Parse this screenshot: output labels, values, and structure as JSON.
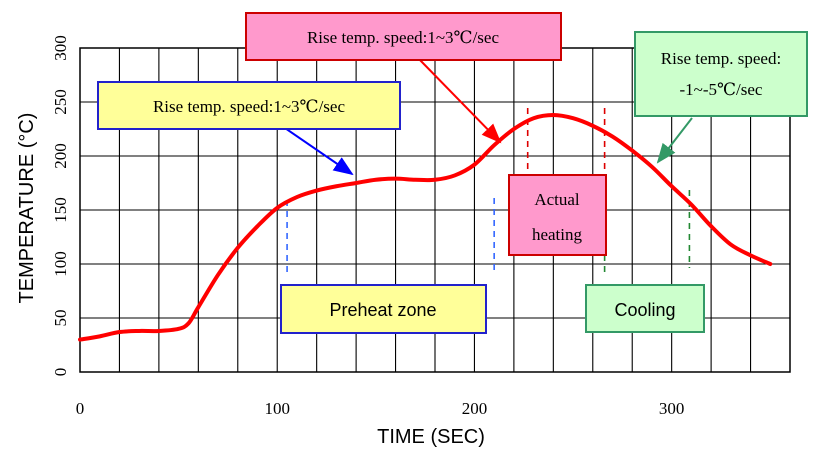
{
  "chart_data": {
    "type": "line",
    "xlabel": "TIME (SEC)",
    "ylabel": "TEMPERATURE (°C)",
    "xlim": [
      0,
      360
    ],
    "ylim": [
      0,
      300
    ],
    "x_ticks": [
      0,
      100,
      200,
      300
    ],
    "y_ticks": [
      0,
      50,
      100,
      150,
      200,
      250,
      300
    ],
    "grid": true,
    "series": [
      {
        "color": "#ff0000",
        "x": [
          0,
          10,
          20,
          30,
          40,
          50,
          55,
          60,
          70,
          80,
          90,
          100,
          110,
          120,
          130,
          140,
          150,
          160,
          170,
          180,
          190,
          200,
          210,
          220,
          230,
          240,
          250,
          260,
          270,
          280,
          290,
          300,
          310,
          320,
          330,
          340,
          350
        ],
        "y": [
          30,
          33,
          37,
          38,
          38,
          40,
          45,
          60,
          90,
          115,
          135,
          152,
          162,
          168,
          172,
          175,
          178,
          179,
          178,
          178,
          182,
          192,
          210,
          225,
          235,
          238,
          235,
          228,
          218,
          205,
          190,
          172,
          155,
          135,
          118,
          108,
          100
        ]
      }
    ],
    "markers": [
      {
        "x": 105,
        "color": "#3366ff"
      },
      {
        "x": 210,
        "color": "#3366ff"
      },
      {
        "x": 227,
        "color": "#dd0000"
      },
      {
        "x": 266,
        "color": "#dd0000"
      },
      {
        "x": 266,
        "color": "#228833"
      },
      {
        "x": 309,
        "color": "#228833"
      }
    ]
  },
  "annotations": {
    "rise1": {
      "text": "Rise temp. speed:1~3℃/sec",
      "fill": "#ffff99",
      "border": "#2222cc",
      "arrow": "#0000ff"
    },
    "rise2": {
      "text": "Rise temp. speed:1~3℃/sec",
      "fill": "#ff99cc",
      "border": "#cc0000",
      "arrow": "#ff0000"
    },
    "rise3": {
      "line1": "Rise temp. speed:",
      "line2": "-1~-5℃/sec",
      "fill": "#ccffcc",
      "border": "#339966",
      "arrow": "#339966"
    },
    "preheat": {
      "text": "Preheat zone",
      "fill": "#ffff99",
      "border": "#2222cc"
    },
    "actual": {
      "line1": "Actual",
      "line2": "heating",
      "fill": "#ff99cc",
      "border": "#cc0000"
    },
    "cooling": {
      "text": "Cooling",
      "fill": "#ccffcc",
      "border": "#339966"
    }
  }
}
